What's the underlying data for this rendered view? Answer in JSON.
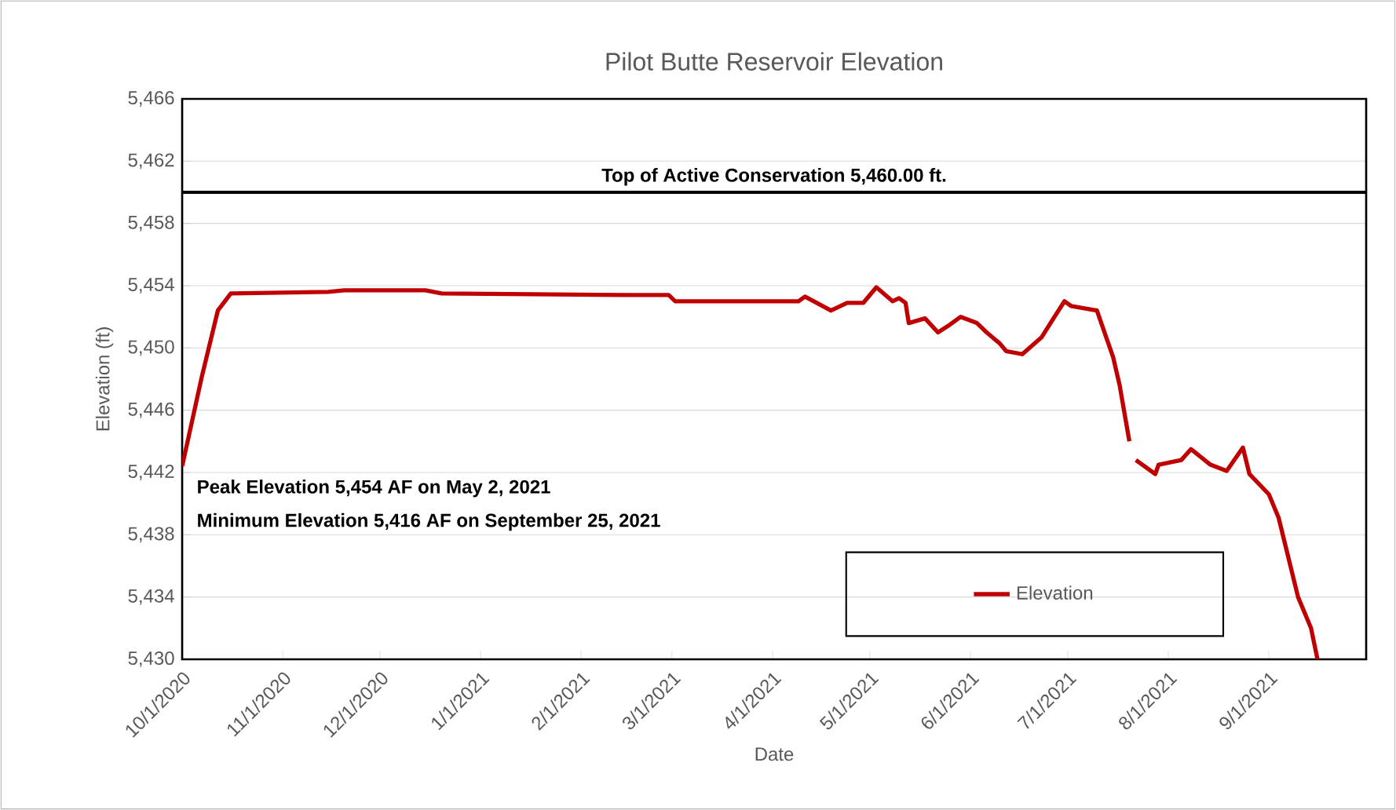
{
  "chart_data": {
    "type": "line",
    "title": "Pilot Butte Reservoir Elevation",
    "xlabel": "Date",
    "ylabel": "Elevation (ft)",
    "series": [
      {
        "name": "Elevation",
        "color": "#c00000",
        "x": [
          "2020-10-01",
          "2020-10-07",
          "2020-10-12",
          "2020-10-16",
          "2020-11-15",
          "2020-11-20",
          "2020-12-15",
          "2020-12-20",
          "2021-02-15",
          "2021-02-28",
          "2021-03-02",
          "2021-04-09",
          "2021-04-11",
          "2021-04-19",
          "2021-04-24",
          "2021-04-29",
          "2021-05-03",
          "2021-05-08",
          "2021-05-10",
          "2021-05-12",
          "2021-05-13",
          "2021-05-18",
          "2021-05-22",
          "2021-05-25",
          "2021-05-29",
          "2021-06-03",
          "2021-06-06",
          "2021-06-10",
          "2021-06-12",
          "2021-06-17",
          "2021-06-23",
          "2021-06-26",
          "2021-06-30",
          "2021-07-02",
          "2021-07-10",
          "2021-07-11",
          "2021-07-15",
          "2021-07-17",
          "2021-07-20",
          "2021-07-21",
          "2021-07-22",
          "2021-07-28",
          "2021-07-29",
          "2021-08-05",
          "2021-08-08",
          "2021-08-14",
          "2021-08-19",
          "2021-08-24",
          "2021-08-26",
          "2021-09-01",
          "2021-09-04",
          "2021-09-10",
          "2021-09-14",
          "2021-09-16"
        ],
        "values": [
          5442.4,
          5448.1,
          5452.4,
          5453.5,
          5453.6,
          5453.7,
          5453.7,
          5453.5,
          5453.4,
          5453.4,
          5453.0,
          5453.0,
          5453.3,
          5452.4,
          5452.9,
          5452.9,
          5453.9,
          5453.0,
          5453.2,
          5452.9,
          5451.6,
          5451.9,
          5451.0,
          5451.4,
          5452.0,
          5451.6,
          5451.0,
          5450.3,
          5449.8,
          5449.6,
          5450.7,
          5451.7,
          5453.0,
          5452.7,
          5452.4,
          5451.8,
          5449.4,
          5447.6,
          5444.0,
          null,
          5442.8,
          5441.9,
          5442.5,
          5442.8,
          5443.5,
          5442.5,
          5442.1,
          5443.6,
          5441.9,
          5440.6,
          5439.1,
          5434.0,
          5432.0,
          5430.0
        ]
      }
    ],
    "xlim": [
      "2020-10-01",
      "2021-10-01"
    ],
    "xticks": [
      {
        "value": "2020-10-01",
        "label": "10/1/2020"
      },
      {
        "value": "2020-11-01",
        "label": "11/1/2020"
      },
      {
        "value": "2020-12-01",
        "label": "12/1/2020"
      },
      {
        "value": "2021-01-01",
        "label": "1/1/2021"
      },
      {
        "value": "2021-02-01",
        "label": "2/1/2021"
      },
      {
        "value": "2021-03-01",
        "label": "3/1/2021"
      },
      {
        "value": "2021-04-01",
        "label": "4/1/2021"
      },
      {
        "value": "2021-05-01",
        "label": "5/1/2021"
      },
      {
        "value": "2021-06-01",
        "label": "6/1/2021"
      },
      {
        "value": "2021-07-01",
        "label": "7/1/2021"
      },
      {
        "value": "2021-08-01",
        "label": "8/1/2021"
      },
      {
        "value": "2021-09-01",
        "label": "9/1/2021"
      }
    ],
    "ylim": [
      5430,
      5466
    ],
    "yticks": [
      {
        "value": 5430,
        "label": "5,430"
      },
      {
        "value": 5434,
        "label": "5,434"
      },
      {
        "value": 5438,
        "label": "5,438"
      },
      {
        "value": 5442,
        "label": "5,442"
      },
      {
        "value": 5446,
        "label": "5,446"
      },
      {
        "value": 5450,
        "label": "5,450"
      },
      {
        "value": 5454,
        "label": "5,454"
      },
      {
        "value": 5458,
        "label": "5,458"
      },
      {
        "value": 5462,
        "label": "5,462"
      },
      {
        "value": 5466,
        "label": "5,466"
      }
    ],
    "ref_lines": [
      {
        "axis": "y",
        "value": 5460,
        "label": "Top of Active Conservation 5,460.00 ft.",
        "color": "#000000"
      }
    ],
    "annotations": [
      "Peak Elevation 5,454 AF on May 2, 2021",
      "Minimum Elevation 5,416 AF on September 25, 2021"
    ],
    "grid": "y",
    "legend": "bottom right",
    "marker": "none",
    "line_style": "solid"
  }
}
